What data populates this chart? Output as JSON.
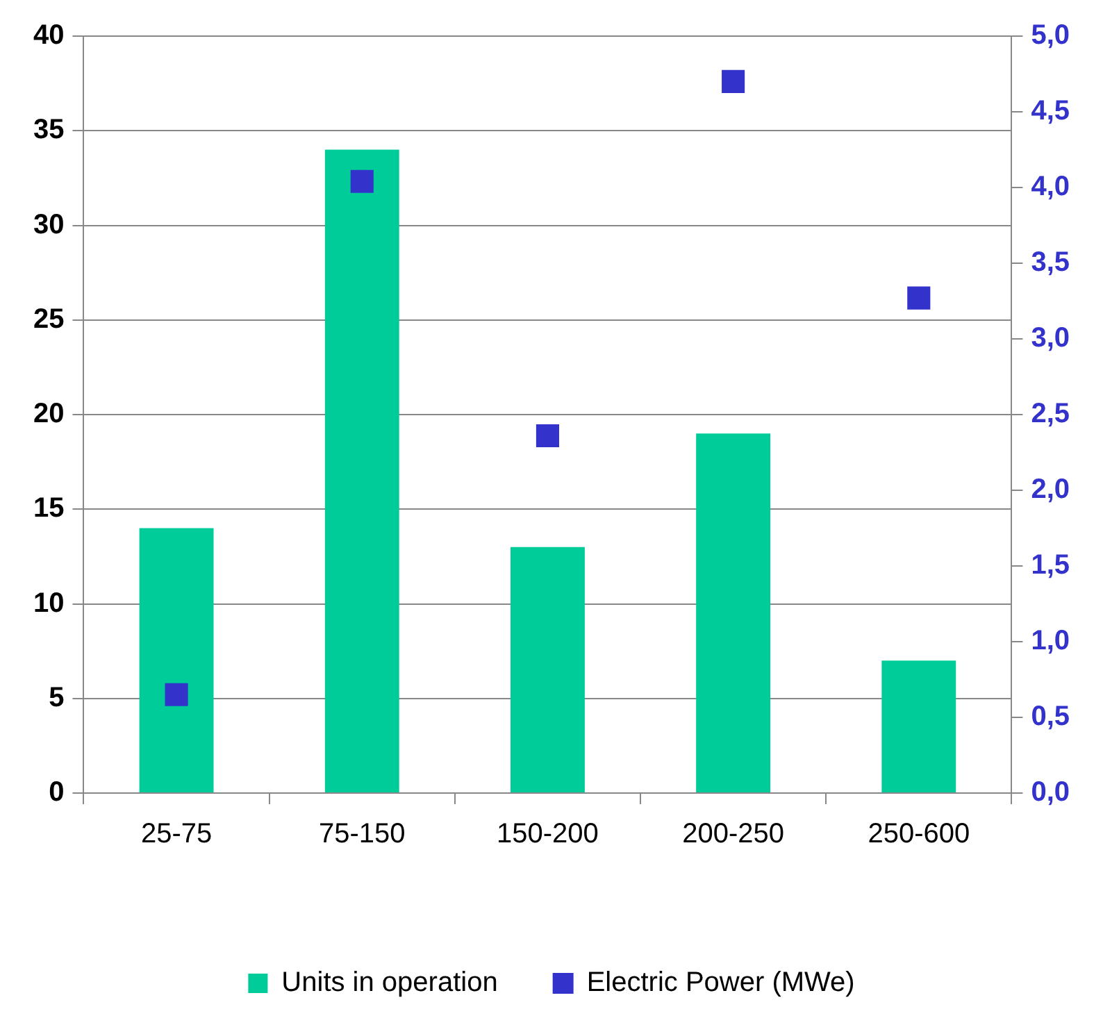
{
  "chart_data": {
    "type": "bar",
    "categories": [
      "25-75",
      "75-150",
      "150-200",
      "200-250",
      "250-600"
    ],
    "series": [
      {
        "name": "Units in operation",
        "color": "#00cc99",
        "values": [
          14,
          34,
          13,
          19,
          7
        ]
      },
      {
        "name": "Electric Power (MWe)",
        "type": "scatter",
        "axis": "y2",
        "color": "#3333cc",
        "x": [
          "25-75",
          "75-150",
          "150-200",
          "200-250",
          "250-600"
        ],
        "values": [
          0.65,
          4.04,
          2.36,
          4.7,
          3.27
        ]
      }
    ],
    "ylim": [
      0,
      40
    ],
    "yticks": [
      0,
      5,
      10,
      15,
      20,
      25,
      30,
      35,
      40
    ],
    "y2lim": [
      0,
      5
    ],
    "y2ticks": [
      {
        "value": 0,
        "label": "0,0"
      },
      {
        "value": 0.5,
        "label": "0,5"
      },
      {
        "value": 1,
        "label": "1,0"
      },
      {
        "value": 1.5,
        "label": "1,5"
      },
      {
        "value": 2,
        "label": "2,0"
      },
      {
        "value": 2.5,
        "label": "2,5"
      },
      {
        "value": 3,
        "label": "3,0"
      },
      {
        "value": 3.5,
        "label": "3,5"
      },
      {
        "value": 4,
        "label": "4,0"
      },
      {
        "value": 4.5,
        "label": "4,5"
      },
      {
        "value": 5,
        "label": "5,0"
      }
    ],
    "grid": "y",
    "legend": "bottom",
    "marker": "square"
  }
}
